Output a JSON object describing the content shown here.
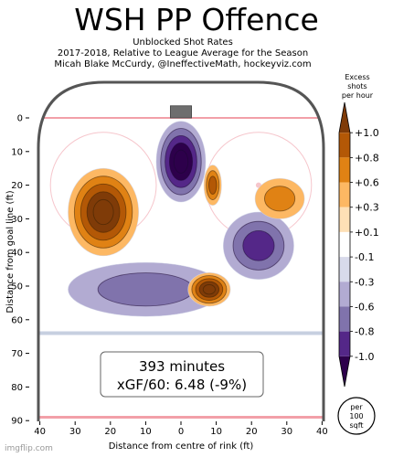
{
  "chart_data": {
    "type": "heatmap",
    "title": "WSH PP Offence",
    "subtitle_lines": [
      "Unblocked Shot Rates",
      "2017-2018, Relative to League Average for the Season",
      "Micah Blake McCurdy, @IneffectiveMath, hockeyviz.com"
    ],
    "xlabel": "Distance from centre of rink (ft)",
    "ylabel": "Distance from goal line (ft)",
    "x_ticks": [
      40,
      30,
      20,
      10,
      0,
      10,
      20,
      30,
      40
    ],
    "y_ticks": [
      0,
      10,
      20,
      30,
      40,
      50,
      60,
      70,
      80,
      90
    ],
    "xlim": [
      -40,
      40
    ],
    "ylim": [
      -3,
      90
    ],
    "colorbar": {
      "title_lines": [
        "Excess",
        "shots",
        "per hour"
      ],
      "ticks": [
        "+1.0",
        "+0.8",
        "+0.6",
        "+0.3",
        "+0.1",
        "-0.1",
        "-0.3",
        "-0.6",
        "-0.8",
        "-1.0"
      ],
      "levels": [
        1.0,
        0.8,
        0.6,
        0.3,
        0.1,
        -0.1,
        -0.3,
        -0.6,
        -0.8,
        -1.0
      ],
      "colors": [
        "#7f3b08",
        "#b35806",
        "#e08214",
        "#fdb863",
        "#fee0b6",
        "#ffffff",
        "#d8daeb",
        "#b2abd2",
        "#8073ac",
        "#542788",
        "#2d004b"
      ]
    },
    "regions": [
      {
        "name": "left-slot-excess",
        "cx": -22,
        "cy": 28,
        "rx": 10,
        "ry": 13,
        "value": 1.0
      },
      {
        "name": "crease-deficit",
        "cx": 0,
        "cy": 13,
        "rx": 7,
        "ry": 12,
        "value": -1.0
      },
      {
        "name": "right-faceoff-deficit",
        "cx": 22,
        "cy": 38,
        "rx": 10,
        "ry": 10,
        "value": -0.6
      },
      {
        "name": "high-slot-deficit",
        "cx": -10,
        "cy": 51,
        "rx": 22,
        "ry": 8,
        "value": -0.3
      },
      {
        "name": "right-point-excess",
        "cx": 8,
        "cy": 51,
        "rx": 6,
        "ry": 5,
        "value": 1.0
      },
      {
        "name": "right-circle-excess-1",
        "cx": 9,
        "cy": 20,
        "rx": 2.5,
        "ry": 6,
        "value": 0.6
      },
      {
        "name": "right-circle-excess-2",
        "cx": 28,
        "cy": 24,
        "rx": 7,
        "ry": 6,
        "value": 0.3
      }
    ],
    "annotation_lines": [
      "393 minutes",
      "xGF/60: 6.48 (-9%)"
    ],
    "per_label_lines": [
      "per",
      "100",
      "sqft"
    ]
  },
  "watermark": "imgflip.com"
}
